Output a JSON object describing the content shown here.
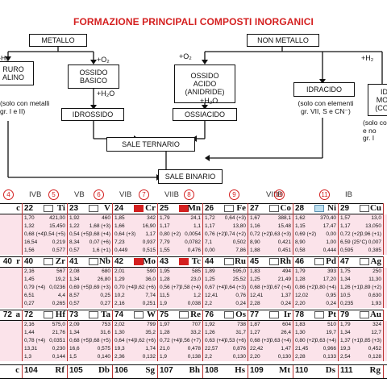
{
  "title": "FORMAZIONE PRINCIPALI COMPOSTI INORGANICI",
  "flow": {
    "metallo": "METALLO",
    "non_metallo": "NON METALLO",
    "idruro": "RURO\nALINO",
    "idruro_note": "(solo con metalli\ngr. I e II)",
    "ossido_basico": "OSSIDO\nBASICO",
    "ossido_acido": "OSSIDO\nACIDO\n(ANIDRIDE)",
    "idracido": "IDRACIDO",
    "idracido_note": "(solo con elementi\ngr. VII, S e CN⁻)",
    "right_box": "ID\nMOL\n(COV",
    "right_note": "(solo co\ne no\ngr. I",
    "idrossido": "IDROSSIDO",
    "ossiacido": "OSSIACIDO",
    "sale_ternario": "SALE TERNARIO",
    "sale_binario": "SALE BINARIO",
    "plus_h2_left": "+H₂",
    "plus_o2_left": "+O₂",
    "plus_h2o_left": "+H₂O",
    "plus_o2_right": "+O₂",
    "plus_h2o_right": "+H₂O",
    "plus_h2_right": "+H₂"
  },
  "groups": [
    {
      "circle": "4",
      "label": "IVB"
    },
    {
      "circle": "5",
      "label": "VB"
    },
    {
      "circle": "6",
      "label": "VIB"
    },
    {
      "circle": "7",
      "label": "VIIB"
    },
    {
      "circle": "8",
      "label": ""
    },
    {
      "circle": "9",
      "label": "VIIIB"
    },
    {
      "circle": "10",
      "label": ""
    },
    {
      "circle": "11",
      "label": "IB"
    }
  ],
  "row4": [
    {
      "num": "22",
      "sym": "Ti",
      "icon": "plain",
      "left": [
        "1,70",
        "1,32",
        "0,68 (+4)",
        "16,54",
        "1,56"
      ],
      "right": [
        "421,00",
        "15,450",
        "0,54 (+5)",
        "0,219",
        "0,577"
      ]
    },
    {
      "num": "23",
      "sym": "V",
      "icon": "plain",
      "left": [
        "1,92",
        "1,22",
        "0,54 (+5)",
        "8,34",
        "0,57"
      ],
      "right": [
        "460",
        "1,68 (+3)",
        "0,68 (+4)",
        "0,07 (+6)",
        "1,6 (+1)"
      ]
    },
    {
      "num": "24",
      "sym": "Cr",
      "icon": "red",
      "left": [
        "1,85",
        "1,66",
        "0,64 (+3)",
        "7,23",
        "0,449"
      ],
      "right": [
        "342",
        "16,90",
        "1,17",
        "0,937",
        "0,515"
      ]
    },
    {
      "num": "25",
      "sym": "Mn",
      "icon": "red",
      "left": [
        "1,79",
        "1,17",
        "0,80 (+2)",
        "7,79",
        "1,55"
      ],
      "right": [
        "24,1",
        "1,1",
        "0,0054",
        "0,0782",
        "0,476"
      ]
    },
    {
      "num": "26",
      "sym": "Fe",
      "icon": "plain",
      "left": [
        "1,72",
        "1,17",
        "0,76 (+2)",
        "7,1",
        "0,00"
      ],
      "right": [
        "0,64 (+3)",
        "13,80",
        "0,74 (+2)",
        "0,502",
        "7,86"
      ]
    },
    {
      "num": "27",
      "sym": "Co",
      "icon": "plain",
      "left": [
        "1,67",
        "1,16",
        "0,72 (+2)",
        "8,90",
        "1,88"
      ],
      "right": [
        "388,1",
        "15,48",
        "0,63 (+3)",
        "0,421",
        "0,451"
      ]
    },
    {
      "num": "28",
      "sym": "Ni",
      "icon": "blue",
      "left": [
        "1,62",
        "1,15",
        "0,69 (+2)",
        "8,90",
        "0,58"
      ],
      "right": [
        "370,40",
        "17,47",
        "0,00",
        "1,00",
        "0,444"
      ]
    },
    {
      "num": "29",
      "sym": "Cu",
      "icon": "plain",
      "left": [
        "1,57",
        "1,17",
        "0,72 (+2)",
        "6,59 (25°C)",
        "0,595"
      ],
      "right": [
        "13,0",
        "13,050",
        "0,96 (+1)",
        "0,007",
        "0,385"
      ]
    }
  ],
  "row5": [
    {
      "num": "40",
      "sym": "Zr",
      "icon": "plain",
      "left": [
        "2,16",
        "1,45",
        "0,79 (+4)",
        "6,51",
        "0,27"
      ],
      "right": [
        "567",
        "19,2",
        "0,0236",
        "4,4",
        "0,265"
      ]
    },
    {
      "num": "41",
      "sym": "Nb",
      "icon": "plain",
      "left": [
        "2,08",
        "1,34",
        "0,69 (+5)",
        "8,57",
        "0,57"
      ],
      "right": [
        "680",
        "26,80",
        "0,69 (+3)",
        "0,25",
        "0,27"
      ]
    },
    {
      "num": "42",
      "sym": "Mo",
      "icon": "red",
      "left": [
        "2,01",
        "1,29",
        "0,70 (+4)",
        "10,2",
        "2,16"
      ],
      "right": [
        "590",
        "36,0",
        "0,62 (+6)",
        "7,74",
        "0,251"
      ]
    },
    {
      "num": "43",
      "sym": "Tc",
      "icon": "red",
      "left": [
        "1,95",
        "1,28",
        "0,56 (+7)",
        "11,5",
        "1,9"
      ],
      "right": [
        "585",
        "23,0",
        "0,58 (+4)",
        "1,2",
        "0,038"
      ]
    },
    {
      "num": "44",
      "sym": "Ru",
      "icon": "plain",
      "left": [
        "1,89",
        "1,25",
        "0,67 (+4)",
        "12,41",
        "2,2"
      ],
      "right": [
        "595,0",
        "25,52",
        "0,64 (+3)",
        "0,76",
        "0,24"
      ]
    },
    {
      "num": "45",
      "sym": "Rh",
      "icon": "plain",
      "left": [
        "1,83",
        "1,25",
        "0,68 (+3)",
        "12,41",
        "2,28"
      ],
      "right": [
        "494",
        "21,49",
        "0,67 (+4)",
        "1,37",
        "0,24"
      ]
    },
    {
      "num": "46",
      "pre": "",
      "sym": "Pd",
      "icon": "plain",
      "left": [
        "1,79",
        "1,28",
        "0,86 (+2)",
        "12,02",
        "2,20"
      ],
      "right": [
        "393",
        "17,20",
        "0,80 (+4)",
        "0,95",
        "0,24"
      ]
    },
    {
      "num": "47",
      "sym": "Ag",
      "icon": "plain",
      "left": [
        "1,75",
        "1,34",
        "1,26 (+1)",
        "10,5",
        "0,235"
      ],
      "right": [
        "250",
        "11,30",
        "0,89 (+2)",
        "0,630",
        "1,93"
      ]
    }
  ],
  "row6": [
    {
      "num": "72",
      "sym": "Hf",
      "icon": "plain",
      "left": [
        "2,16",
        "1,44",
        "0,78 (+4)",
        "13,31",
        "1,3"
      ],
      "right": [
        "575,0",
        "21,76",
        "0,0351",
        "0,230",
        "0,144"
      ]
    },
    {
      "num": "73",
      "sym": "Ta",
      "icon": "plain",
      "left": [
        "2,09",
        "1,34",
        "0,68 (+5)",
        "16,6",
        "1,5"
      ],
      "right": [
        "753",
        "31,6",
        "0,68 (+5)",
        "0,575",
        "0,140"
      ]
    },
    {
      "num": "74",
      "sym": "W",
      "icon": "plain",
      "left": [
        "2,02",
        "1,30",
        "0,64 (+4)",
        "19,3",
        "2,36"
      ],
      "right": [
        "799",
        "35,2",
        "0,62 (+6)",
        "1,74",
        "0,132"
      ]
    },
    {
      "num": "75",
      "sym": "Re",
      "icon": "plain",
      "left": [
        "1,97",
        "1,28",
        "0,72 (+4)",
        "21,0",
        "1,9"
      ],
      "right": [
        "707",
        "33,2",
        "0,56 (+7)",
        "0,478",
        "0,138"
      ]
    },
    {
      "num": "76",
      "sym": "Os",
      "icon": "plain",
      "left": [
        "1,92",
        "1,26",
        "0,63 (+4)",
        "22,57",
        "2,2"
      ],
      "right": [
        "738",
        "31,7",
        "0,53 (+6)",
        "0,876",
        "0,130"
      ]
    },
    {
      "num": "77",
      "sym": "Ir",
      "icon": "plain",
      "left": [
        "1,87",
        "1,27",
        "0,68 (+3)",
        "22,42",
        "2,20"
      ],
      "right": [
        "604",
        "26,4",
        "0,63 (+4)",
        "1,47",
        "0,130"
      ]
    },
    {
      "num": "78",
      "sym": "Pt",
      "icon": "plain",
      "left": [
        "1,83",
        "1,30",
        "0,80 (+2)",
        "21,45",
        "2,28"
      ],
      "right": [
        "510",
        "19,7",
        "0,63 (+4)",
        "0,966",
        "0,133"
      ]
    },
    {
      "num": "79",
      "sym": "Au",
      "icon": "plain",
      "left": [
        "1,79",
        "1,34",
        "1,37 (+1)",
        "19,3",
        "2,54"
      ],
      "right": [
        "324",
        "12,7",
        "0,85 (+3)",
        "0,452",
        "0,128"
      ]
    }
  ],
  "row7": [
    {
      "num": "104",
      "sym": "Rf"
    },
    {
      "num": "105",
      "sym": "Db"
    },
    {
      "num": "106",
      "sym": "Sg"
    },
    {
      "num": "107",
      "sym": "Bh"
    },
    {
      "num": "108",
      "sym": "Hs"
    },
    {
      "num": "109",
      "sym": "Mt"
    },
    {
      "num": "110",
      "sym": "Ds"
    },
    {
      "num": "111",
      "sym": "Rg"
    }
  ],
  "partial_left": {
    "row4_sym": "c",
    "row5_num": "40",
    "row5_sym": "r",
    "row6_num": "72",
    "row6_sym": "a",
    "row7_sym": "c"
  }
}
